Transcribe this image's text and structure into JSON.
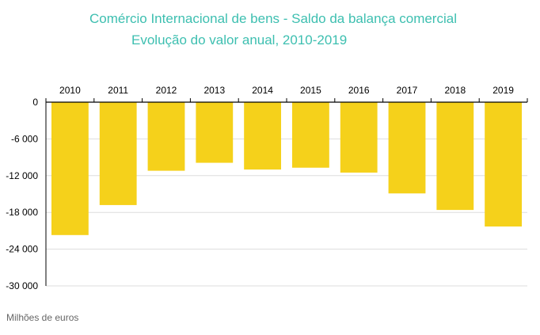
{
  "chart_data": {
    "type": "bar",
    "title": "Comércio Internacional de bens - Saldo da balança comercial",
    "subtitle": "Evolução do valor anual, 2010-2019",
    "categories": [
      "2010",
      "2011",
      "2012",
      "2013",
      "2014",
      "2015",
      "2016",
      "2017",
      "2018",
      "2019"
    ],
    "values": [
      -21700,
      -16800,
      -11200,
      -9900,
      -11000,
      -10700,
      -11500,
      -14900,
      -17600,
      -20300
    ],
    "ylim": [
      -30000,
      0
    ],
    "yticks": [
      0,
      -6000,
      -12000,
      -18000,
      -24000,
      -30000
    ],
    "ytick_labels": [
      "0",
      "-6 000",
      "-12 000",
      "-18 000",
      "-24 000",
      "-30 000"
    ],
    "unit_note": "Milhões de euros",
    "bar_color": "#f5d11b",
    "grid": true,
    "xaxis_position": "top"
  },
  "colors": {
    "title": "#3dbfb0",
    "bar": "#f5d11b",
    "grid": "#dddddd"
  }
}
